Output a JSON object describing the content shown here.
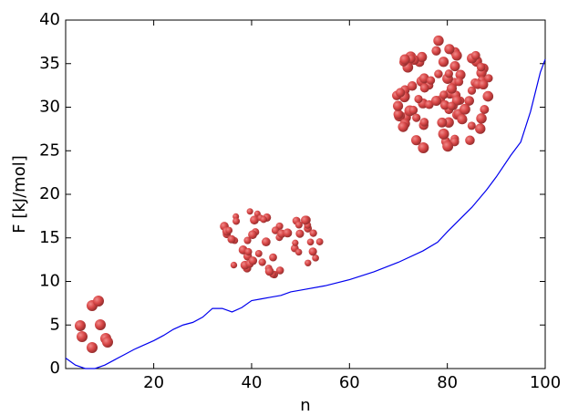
{
  "chart_data": {
    "type": "line",
    "x_label": "n",
    "y_label": "F [kJ/mol]",
    "x": [
      2,
      4,
      6,
      8,
      10,
      12,
      14,
      16,
      18,
      20,
      22,
      24,
      26,
      28,
      30,
      32,
      34,
      36,
      38,
      40,
      42,
      44,
      46,
      48,
      50,
      55,
      60,
      65,
      70,
      75,
      78,
      80,
      85,
      88,
      90,
      93,
      95,
      97,
      99,
      100
    ],
    "series": [
      {
        "color": "#0000ee",
        "values": [
          1.2,
          0.4,
          0.0,
          0.0,
          0.4,
          1.0,
          1.6,
          2.2,
          2.7,
          3.2,
          3.8,
          4.5,
          5.0,
          5.3,
          5.9,
          6.9,
          6.9,
          6.5,
          7.0,
          7.8,
          8.0,
          8.2,
          8.4,
          8.8,
          9.0,
          9.5,
          10.2,
          11.1,
          12.2,
          13.5,
          14.5,
          15.7,
          18.5,
          20.5,
          22.0,
          24.5,
          26.0,
          29.5,
          34.0,
          35.5
        ]
      }
    ],
    "xlim": [
      2,
      100
    ],
    "ylim": [
      0,
      40
    ],
    "xticks": [
      20,
      40,
      60,
      80,
      100
    ],
    "yticks": [
      0,
      5,
      10,
      15,
      20,
      25,
      30,
      35,
      40
    ]
  }
}
